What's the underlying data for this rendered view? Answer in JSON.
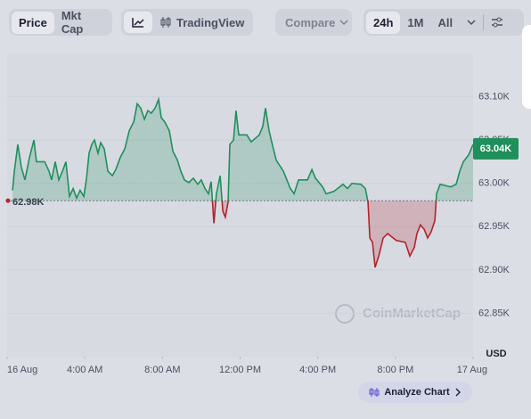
{
  "toolbar": {
    "tabs": [
      "Price",
      "Mkt Cap"
    ],
    "view": "TradingView",
    "compare": "Compare",
    "ranges": [
      "24h",
      "1M",
      "All"
    ]
  },
  "chart_data": {
    "type": "line",
    "x": [
      0.28,
      0.37,
      0.55,
      0.73,
      0.92,
      1.15,
      1.38,
      1.51,
      1.93,
      2.16,
      2.29,
      2.48,
      2.66,
      2.85,
      3.03,
      3.21,
      3.4,
      3.58,
      3.76,
      3.95,
      4.08,
      4.22,
      4.36,
      4.5,
      4.68,
      4.82,
      5.0,
      5.19,
      5.42,
      5.6,
      5.83,
      6.06,
      6.29,
      6.52,
      6.7,
      6.88,
      7.07,
      7.25,
      7.43,
      7.62,
      7.8,
      7.94,
      8.12,
      8.35,
      8.54,
      8.77,
      8.95,
      9.13,
      9.36,
      9.59,
      9.82,
      10.0,
      10.19,
      10.37,
      10.51,
      10.65,
      10.78,
      10.97,
      11.11,
      11.24,
      11.38,
      11.47,
      11.66,
      11.79,
      11.93,
      12.35,
      12.57,
      12.99,
      13.17,
      13.31,
      13.49,
      13.68,
      13.86,
      14.23,
      14.59,
      14.78,
      15.01,
      15.47,
      15.7,
      15.88,
      16.25,
      16.43,
      16.84,
      17.3,
      17.53,
      17.76,
      18.22,
      18.45,
      18.59,
      18.68,
      18.82,
      18.95,
      19.14,
      19.37,
      19.6,
      20.05,
      20.51,
      20.74,
      20.97,
      21.11,
      21.29,
      21.48,
      21.66,
      21.84,
      22.03,
      22.12,
      22.3,
      22.85,
      23.13,
      23.31,
      23.5,
      23.77,
      24.0
    ],
    "values": [
      62992,
      63014,
      63045,
      63019,
      63004,
      63030,
      63050,
      63025,
      63025,
      63014,
      63004,
      63025,
      63004,
      63014,
      63025,
      62985,
      62994,
      62983,
      62992,
      62985,
      63004,
      63035,
      63045,
      63050,
      63035,
      63047,
      63040,
      63014,
      63009,
      63016,
      63030,
      63040,
      63061,
      63071,
      63092,
      63087,
      63074,
      63084,
      63081,
      63087,
      63097,
      63076,
      63071,
      63061,
      63037,
      63027,
      63014,
      63004,
      63001,
      63006,
      62999,
      63004,
      62994,
      62988,
      63002,
      62954,
      62988,
      63009,
      62968,
      62961,
      62978,
      63045,
      63050,
      63084,
      63056,
      63056,
      63048,
      63056,
      63066,
      63087,
      63061,
      63043,
      63027,
      63014,
      62994,
      62988,
      63004,
      63004,
      63016,
      63006,
      62996,
      62988,
      62991,
      62999,
      62994,
      63000,
      62999,
      62994,
      62978,
      62937,
      62932,
      62903,
      62916,
      62937,
      62942,
      62934,
      62932,
      62916,
      62926,
      62942,
      62952,
      62947,
      62937,
      62944,
      62957,
      62988,
      62999,
      62996,
      62999,
      63014,
      63025,
      63033,
      63045
    ],
    "color": "#1f8f5c",
    "negative_color": "#b3232b",
    "baseline": {
      "value": 62980,
      "label": "62.98K"
    },
    "last_price": {
      "value": 63040,
      "label": "63.04K"
    },
    "xlim": [
      0,
      24
    ],
    "xticks": [
      {
        "value": 0,
        "label": "16 Aug"
      },
      {
        "value": 4,
        "label": "4:00 AM"
      },
      {
        "value": 8,
        "label": "8:00 AM"
      },
      {
        "value": 12,
        "label": "12:00 PM"
      },
      {
        "value": 16,
        "label": "4:00 PM"
      },
      {
        "value": 20,
        "label": "8:00 PM"
      },
      {
        "value": 24,
        "label": "17 Aug"
      }
    ],
    "ylim": [
      62800,
      63150
    ],
    "yticks": [
      {
        "value": 62850,
        "label": "62.85K"
      },
      {
        "value": 62900,
        "label": "62.90K"
      },
      {
        "value": 62950,
        "label": "62.95K"
      },
      {
        "value": 63000,
        "label": "63.00K"
      },
      {
        "value": 63050,
        "label": "63.05K"
      },
      {
        "value": 63100,
        "label": "63.10K"
      }
    ],
    "y_unit": "USD",
    "grid": true,
    "watermark": "CoinMarketCap"
  },
  "actions": {
    "analyze": "Analyze Chart"
  }
}
